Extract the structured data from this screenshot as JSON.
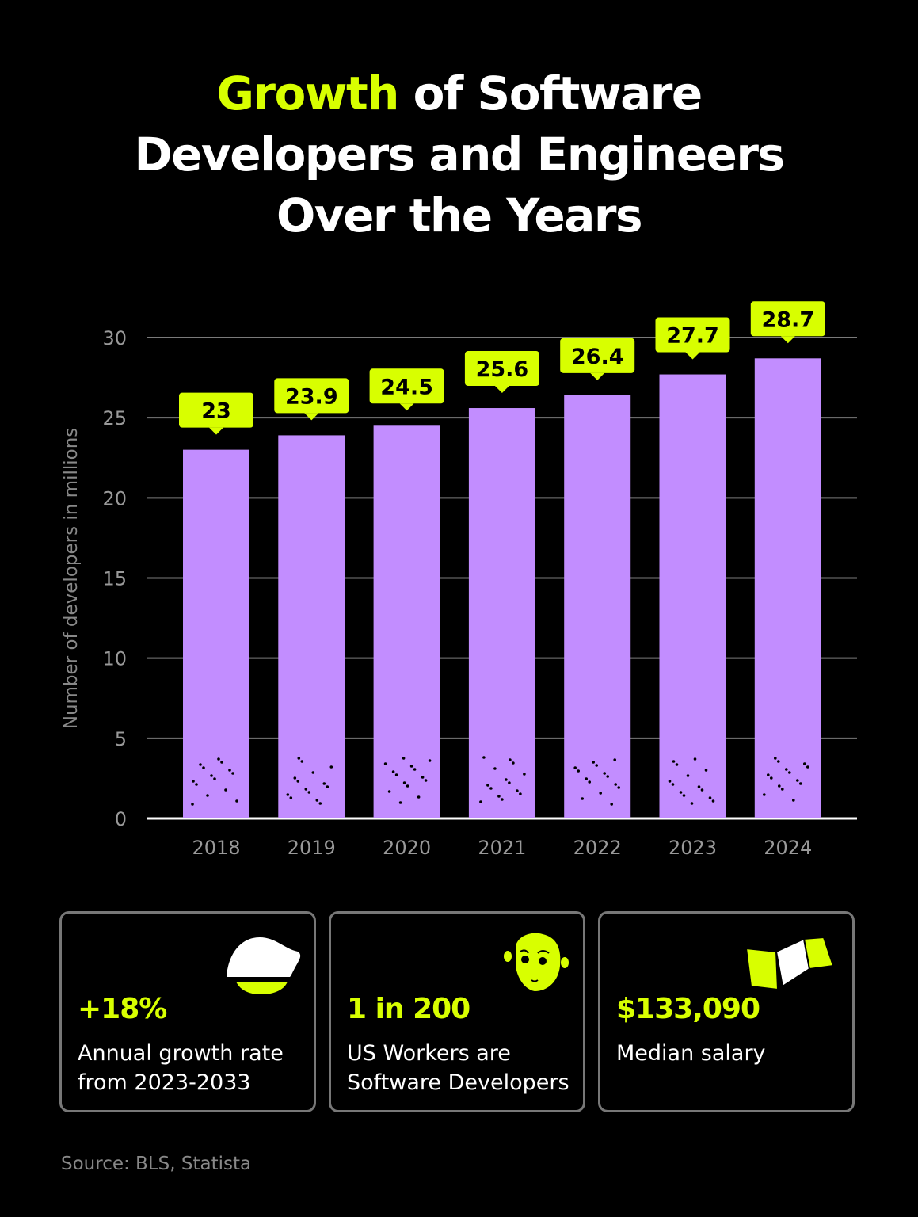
{
  "title": {
    "highlight": "Growth",
    "rest_line1": " of Software",
    "line2": "Developers and Engineers",
    "line3": "Over the Years"
  },
  "chart_data": {
    "type": "bar",
    "categories": [
      "2018",
      "2019",
      "2020",
      "2021",
      "2022",
      "2023",
      "2024"
    ],
    "values": [
      23,
      23.9,
      24.5,
      25.6,
      26.4,
      27.7,
      28.7
    ],
    "data_labels": [
      "23",
      "23.9",
      "24.5",
      "25.6",
      "26.4",
      "27.7",
      "28.7"
    ],
    "ylabel": "Number of developers in millions",
    "ylim": [
      0,
      30
    ],
    "yticks": [
      "0",
      "5",
      "10",
      "15",
      "20",
      "25",
      "30"
    ],
    "grid": true,
    "colors": {
      "bar": "#c28dff",
      "label_bg": "#d8ff00",
      "grid": "#7a7a7a"
    }
  },
  "stats": [
    {
      "value": "+18%",
      "desc_line1": "Annual growth rate",
      "desc_line2": "from 2023-2033",
      "icon": "lemon-icon"
    },
    {
      "value": "1 in 200",
      "desc_line1": "US Workers are",
      "desc_line2": "Software Developers",
      "icon": "developer-face-icon"
    },
    {
      "value": "$133,090",
      "desc_line1": "Median salary",
      "desc_line2": "",
      "icon": "money-stack-icon"
    }
  ],
  "source": "Source: BLS, Statista"
}
